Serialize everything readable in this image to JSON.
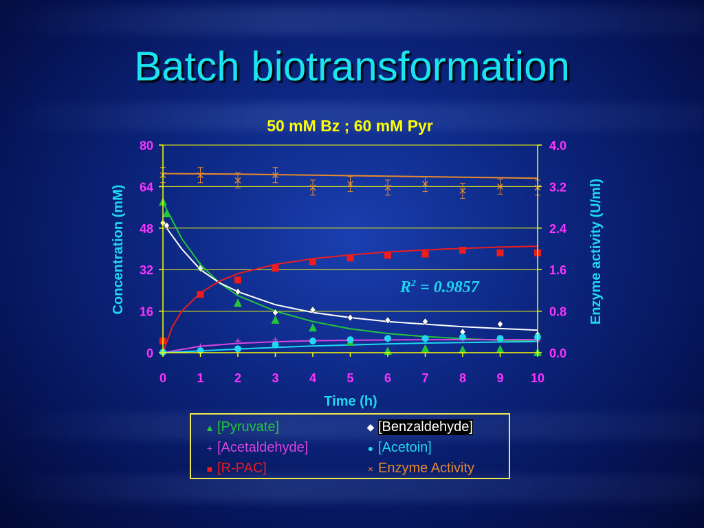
{
  "slide": {
    "title": "Batch biotransformation"
  },
  "colors": {
    "pyruvate": "#22c63a",
    "benzaldehyde": "#ffffff",
    "acetaldehyde": "#d945e0",
    "acetoin": "#20d8f0",
    "rpac": "#ee1c1c",
    "enzyme": "#e88a2c",
    "axis_left": "#ff33ff",
    "axis_right": "#ff33ff",
    "title": "#ffff00",
    "axis_title": "#20d8f0",
    "axis_line": "#ffff00"
  },
  "chart_data": {
    "type": "scatter",
    "title": "50 mM Bz ; 60 mM Pyr",
    "xlabel": "Time (h)",
    "ylabel": "Concentration (mM)",
    "y2label": "Enzyme activity (U/ml)",
    "xlim": [
      0,
      10
    ],
    "ylim": [
      0,
      80
    ],
    "y2lim": [
      0,
      4.0
    ],
    "xticks": [
      "0",
      "1",
      "2",
      "3",
      "4",
      "5",
      "6",
      "7",
      "8",
      "9",
      "10"
    ],
    "yticks": [
      "0",
      "16",
      "32",
      "48",
      "64",
      "80"
    ],
    "y2ticks": [
      "0.0",
      "0.8",
      "1.6",
      "2.4",
      "3.2",
      "4.0"
    ],
    "grid": "horizontal",
    "annotation": "R² = 0.9857",
    "annotation_main": "R",
    "annotation_sup": "2",
    "annotation_rest": " = 0.9857",
    "series": [
      {
        "name": "[Pyruvate]",
        "marker": "triangle",
        "axis": "left",
        "points": [
          [
            0,
            58
          ],
          [
            0.1,
            53.5
          ],
          [
            1,
            33
          ],
          [
            2,
            19
          ],
          [
            3,
            12.5
          ],
          [
            4,
            9.5
          ],
          [
            5,
            4
          ],
          [
            6,
            0.5
          ],
          [
            7,
            1.5
          ],
          [
            8,
            1
          ],
          [
            9,
            1.2
          ],
          [
            10,
            0
          ]
        ]
      },
      {
        "name": "[Benzaldehyde]",
        "marker": "diamond",
        "axis": "left",
        "points": [
          [
            0,
            50
          ],
          [
            0.1,
            49
          ],
          [
            1,
            32.5
          ],
          [
            2,
            23.5
          ],
          [
            3,
            15.5
          ],
          [
            4,
            16.5
          ],
          [
            5,
            13.5
          ],
          [
            6,
            12.5
          ],
          [
            7,
            12
          ],
          [
            8,
            8
          ],
          [
            9,
            11
          ],
          [
            10,
            7
          ]
        ]
      },
      {
        "name": "[Acetaldehyde]",
        "marker": "plus",
        "axis": "left",
        "points": [
          [
            0,
            0.5
          ],
          [
            1,
            2.5
          ],
          [
            2,
            4.5
          ],
          [
            3,
            5
          ],
          [
            4,
            5
          ],
          [
            5,
            5
          ],
          [
            6,
            5
          ],
          [
            7,
            5
          ],
          [
            8,
            5
          ],
          [
            9,
            5
          ],
          [
            10,
            4.5
          ]
        ]
      },
      {
        "name": "[Acetoin]",
        "marker": "circle",
        "axis": "left",
        "points": [
          [
            0,
            0.2
          ],
          [
            1,
            0.8
          ],
          [
            2,
            1.5
          ],
          [
            3,
            3
          ],
          [
            4,
            4.5
          ],
          [
            5,
            5
          ],
          [
            6,
            5.5
          ],
          [
            7,
            5.5
          ],
          [
            8,
            6
          ],
          [
            9,
            5.5
          ],
          [
            10,
            6
          ]
        ]
      },
      {
        "name": "[R-PAC]",
        "marker": "square",
        "axis": "left",
        "points": [
          [
            0,
            4.5
          ],
          [
            1,
            22.5
          ],
          [
            2,
            28
          ],
          [
            3,
            32.5
          ],
          [
            4,
            35
          ],
          [
            5,
            36.5
          ],
          [
            6,
            37.5
          ],
          [
            7,
            38
          ],
          [
            8,
            39.5
          ],
          [
            9,
            38.5
          ],
          [
            10,
            38.5
          ]
        ]
      },
      {
        "name": "Enzyme Activity",
        "marker": "x",
        "axis": "right",
        "points": [
          [
            0,
            3.42
          ],
          [
            1,
            3.42
          ],
          [
            2,
            3.32
          ],
          [
            3,
            3.42
          ],
          [
            4,
            3.18
          ],
          [
            5,
            3.25
          ],
          [
            6,
            3.18
          ],
          [
            7,
            3.25
          ],
          [
            8,
            3.12
          ],
          [
            9,
            3.2
          ],
          [
            10,
            3.18
          ]
        ]
      }
    ],
    "fits": [
      {
        "series": "[Pyruvate]",
        "points": [
          [
            0,
            58
          ],
          [
            0.5,
            44
          ],
          [
            1,
            34
          ],
          [
            1.5,
            27
          ],
          [
            2,
            22
          ],
          [
            3,
            16
          ],
          [
            4,
            12
          ],
          [
            5,
            9.2
          ],
          [
            6,
            7.4
          ],
          [
            7,
            6.2
          ],
          [
            8,
            5.4
          ],
          [
            9,
            4.8
          ],
          [
            10,
            4.4
          ]
        ]
      },
      {
        "series": "[Benzaldehyde]",
        "points": [
          [
            0,
            50
          ],
          [
            0.5,
            40
          ],
          [
            1,
            32
          ],
          [
            1.5,
            27
          ],
          [
            2,
            23.5
          ],
          [
            3,
            18.5
          ],
          [
            4,
            15.5
          ],
          [
            5,
            13.5
          ],
          [
            6,
            12
          ],
          [
            7,
            11
          ],
          [
            8,
            10
          ],
          [
            9,
            9.3
          ],
          [
            10,
            8.7
          ]
        ]
      },
      {
        "series": "[R-PAC]",
        "points": [
          [
            0,
            0
          ],
          [
            0.25,
            10
          ],
          [
            0.5,
            16
          ],
          [
            1,
            23
          ],
          [
            1.5,
            27.5
          ],
          [
            2,
            30.5
          ],
          [
            3,
            34
          ],
          [
            4,
            36.2
          ],
          [
            5,
            37.7
          ],
          [
            6,
            38.8
          ],
          [
            7,
            39.6
          ],
          [
            8,
            40.2
          ],
          [
            9,
            40.7
          ],
          [
            10,
            41
          ]
        ]
      },
      {
        "series": "[Acetaldehyde]",
        "points": [
          [
            0,
            0
          ],
          [
            1,
            2.5
          ],
          [
            2,
            3.6
          ],
          [
            3,
            4.2
          ],
          [
            4,
            4.6
          ],
          [
            5,
            4.8
          ],
          [
            6,
            4.9
          ],
          [
            7,
            5
          ],
          [
            8,
            5
          ],
          [
            9,
            5
          ],
          [
            10,
            5
          ]
        ]
      },
      {
        "series": "[Acetoin]",
        "points": [
          [
            0,
            0
          ],
          [
            1,
            0.7
          ],
          [
            2,
            1.4
          ],
          [
            3,
            2
          ],
          [
            4,
            2.6
          ],
          [
            5,
            3
          ],
          [
            6,
            3.4
          ],
          [
            7,
            3.7
          ],
          [
            8,
            3.9
          ],
          [
            9,
            4.1
          ],
          [
            10,
            4.3
          ]
        ]
      },
      {
        "series": "Enzyme Activity",
        "points": [
          [
            0,
            3.45
          ],
          [
            2,
            3.44
          ],
          [
            4,
            3.42
          ],
          [
            6,
            3.4
          ],
          [
            8,
            3.38
          ],
          [
            10,
            3.36
          ]
        ]
      }
    ],
    "legend": {
      "position": "bottom",
      "items": [
        {
          "label": "[Pyruvate]",
          "symbol": "▲"
        },
        {
          "label": "[Benzaldehyde]",
          "symbol": "◆"
        },
        {
          "label": "[Acetaldehyde]",
          "symbol": "+"
        },
        {
          "label": "[Acetoin]",
          "symbol": "●"
        },
        {
          "label": "[R-PAC]",
          "symbol": "■"
        },
        {
          "label": "Enzyme Activity",
          "symbol": "×"
        }
      ]
    }
  }
}
